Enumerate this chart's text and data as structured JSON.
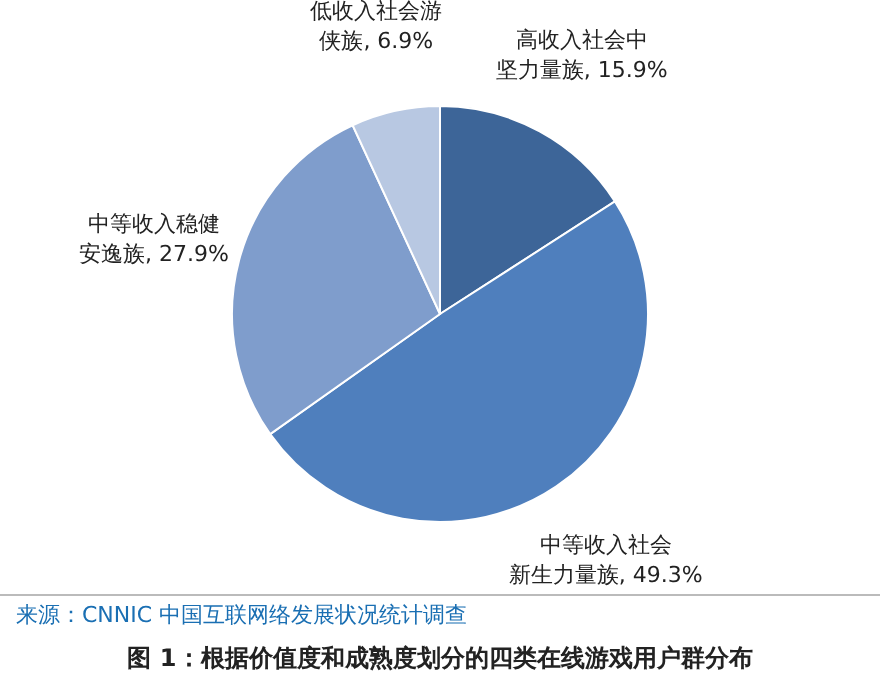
{
  "chart_data": {
    "type": "pie",
    "title": "图 1：根据价值度和成熟度划分的四类在线游戏用户群分布",
    "categories": [
      "高收入社会中坚力量族",
      "中等收入社会新生力量族",
      "中等收入稳健安逸族",
      "低收入社会游侠族"
    ],
    "values": [
      15.9,
      49.3,
      27.9,
      6.9
    ],
    "value_labels": [
      "15.9%",
      "49.3%",
      "27.9%",
      "6.9%"
    ],
    "colors": [
      "#3d6598",
      "#4f7fbd",
      "#7f9dcc",
      "#b8c8e2"
    ],
    "annotations": [
      "来源：CNNIC 中国互联网络发展状况统计调查"
    ],
    "legend": false
  }
}
